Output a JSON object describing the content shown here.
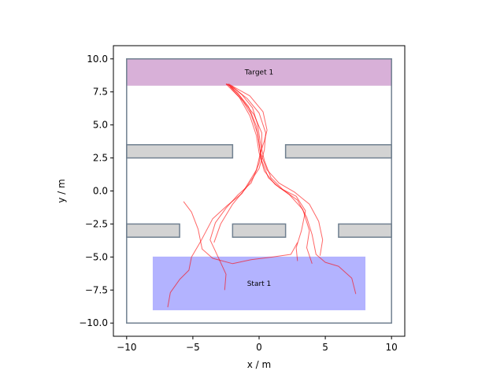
{
  "chart_data": {
    "type": "line",
    "title": "",
    "xlabel": "x / m",
    "ylabel": "y / m",
    "xlim": [
      -11,
      11
    ],
    "ylim": [
      -11,
      11
    ],
    "xticks": [
      -10,
      -5,
      0,
      5,
      10
    ],
    "yticks": [
      -10,
      -7.5,
      -5,
      -2.5,
      0,
      2.5,
      5,
      7.5,
      10
    ],
    "xtick_labels": [
      "−10",
      "−5",
      "0",
      "5",
      "10"
    ],
    "ytick_labels": [
      "−10.0",
      "−7.5",
      "−5.0",
      "−2.5",
      "0.0",
      "2.5",
      "5.0",
      "7.5",
      "10.0"
    ],
    "grid": false,
    "boundary": {
      "x": [
        -10,
        10
      ],
      "y": [
        -10,
        10
      ],
      "color": "#708090"
    },
    "obstacles": [
      {
        "x": [
          -10,
          -2
        ],
        "y": [
          2.5,
          3.5
        ]
      },
      {
        "x": [
          2,
          10
        ],
        "y": [
          2.5,
          3.5
        ]
      },
      {
        "x": [
          -10,
          -6
        ],
        "y": [
          -3.5,
          -2.5
        ]
      },
      {
        "x": [
          -2,
          2
        ],
        "y": [
          -3.5,
          -2.5
        ]
      },
      {
        "x": [
          6,
          10
        ],
        "y": [
          -3.5,
          -2.5
        ]
      }
    ],
    "obstacle_fill": "#d3d3d3",
    "regions": [
      {
        "label": "Target 1",
        "x": [
          -10,
          10
        ],
        "y": [
          8,
          10
        ],
        "color": "#d8b0d8"
      },
      {
        "label": "Start 1",
        "x": [
          -8,
          8
        ],
        "y": [
          -9,
          -5
        ],
        "color": "#b3b3ff"
      }
    ],
    "trajectory_color": "#ff0000",
    "trajectories": [
      {
        "x": [
          -6.9,
          -6.7,
          -6.0,
          -5.3,
          -5.1,
          -4.4,
          -3.5,
          -2.4,
          -1.3,
          -0.2,
          0.1,
          0.4,
          0.6,
          0.3,
          -0.7,
          -1.6,
          -2.3
        ],
        "y": [
          -8.8,
          -7.7,
          -6.7,
          -6.0,
          -5.0,
          -3.8,
          -2.1,
          -1.1,
          -0.2,
          1.6,
          2.9,
          3.8,
          4.6,
          6.0,
          7.2,
          7.7,
          8.1
        ]
      },
      {
        "x": [
          -2.6,
          -2.5,
          -3.0,
          -3.7,
          -3.3,
          -2.5,
          -1.6,
          -0.6,
          0.0,
          0.2,
          0.2,
          -0.4,
          -1.2,
          -2.0,
          -2.5
        ],
        "y": [
          -7.5,
          -6.3,
          -5.2,
          -3.7,
          -2.4,
          -1.3,
          -0.3,
          0.6,
          2.1,
          3.3,
          4.4,
          5.8,
          6.8,
          7.6,
          8.1
        ]
      },
      {
        "x": [
          -3.4,
          -2.9,
          -2.0,
          -1.0,
          0.0,
          0.4,
          0.5,
          0.0,
          -0.9,
          -1.8,
          -2.4
        ],
        "y": [
          -3.9,
          -2.5,
          -1.0,
          0.2,
          1.7,
          3.1,
          4.4,
          5.9,
          7.0,
          7.7,
          8.1
        ]
      },
      {
        "x": [
          2.9,
          2.8,
          3.2,
          3.5,
          2.8,
          1.6,
          0.7,
          0.2,
          0.0,
          -0.2,
          -0.8,
          -1.6,
          -2.3
        ],
        "y": [
          -5.3,
          -4.3,
          -3.0,
          -1.5,
          -0.4,
          0.2,
          1.0,
          2.3,
          3.6,
          4.9,
          6.4,
          7.4,
          8.0
        ]
      },
      {
        "x": [
          4.0,
          3.6,
          3.8,
          3.3,
          2.3,
          1.2,
          0.4,
          0.0,
          -0.2,
          -0.7,
          -1.5,
          -2.2
        ],
        "y": [
          -5.5,
          -4.3,
          -3.0,
          -1.4,
          -0.3,
          0.5,
          1.5,
          2.9,
          4.2,
          5.7,
          7.1,
          7.9
        ]
      },
      {
        "x": [
          2.9,
          2.4,
          1.0,
          -0.6,
          -2.0,
          -3.5,
          -4.3,
          -4.6,
          -5.1,
          -5.7
        ],
        "y": [
          -3.9,
          -4.8,
          -5.0,
          -5.2,
          -5.5,
          -5.1,
          -4.4,
          -2.9,
          -1.6,
          -0.8
        ]
      },
      {
        "x": [
          7.3,
          7.0,
          6.0,
          5.0,
          4.3,
          4.0,
          3.6,
          2.9,
          1.8,
          0.9,
          0.4,
          0.1,
          -0.1,
          -0.5,
          -1.3,
          -2.0,
          -2.5
        ],
        "y": [
          -7.8,
          -6.6,
          -5.7,
          -5.4,
          -4.8,
          -3.3,
          -2.0,
          -0.7,
          0.1,
          1.0,
          2.3,
          3.6,
          5.0,
          6.3,
          7.3,
          7.9,
          8.1
        ]
      },
      {
        "x": [
          4.6,
          4.8,
          4.5,
          3.8,
          2.7,
          1.5,
          0.6,
          0.1,
          -0.1,
          -0.6,
          -1.4,
          -2.1
        ],
        "y": [
          -4.9,
          -3.7,
          -2.3,
          -1.0,
          -0.1,
          0.6,
          1.6,
          2.9,
          4.3,
          5.8,
          7.1,
          7.9
        ]
      }
    ]
  }
}
